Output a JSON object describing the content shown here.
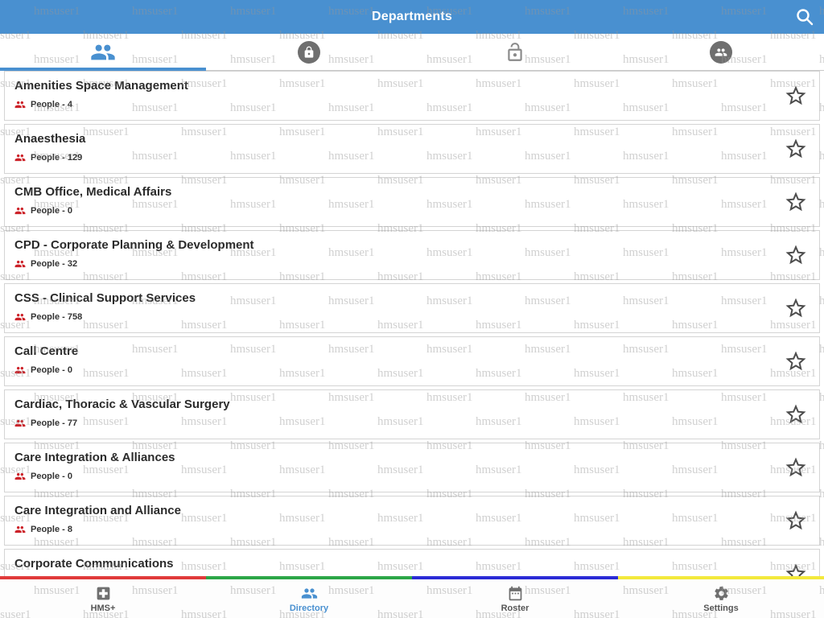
{
  "header": {
    "title": "Departments"
  },
  "watermark": {
    "text": "hmsuser1"
  },
  "top_tabs": [
    {
      "icon": "people-icon",
      "active": true
    },
    {
      "icon": "lock-closed-icon",
      "active": false
    },
    {
      "icon": "lock-open-icon",
      "active": false
    },
    {
      "icon": "people-circle-icon",
      "active": false
    }
  ],
  "departments": [
    {
      "name": "Amenities Space Management",
      "people": "People - 4"
    },
    {
      "name": "Anaesthesia",
      "people": "People - 129"
    },
    {
      "name": "CMB Office, Medical Affairs",
      "people": "People - 0"
    },
    {
      "name": "CPD - Corporate Planning & Development",
      "people": "People - 32"
    },
    {
      "name": "CSS - Clinical Support Services",
      "people": "People - 758"
    },
    {
      "name": "Call Centre",
      "people": "People - 0"
    },
    {
      "name": "Cardiac, Thoracic & Vascular Surgery",
      "people": "People - 77"
    },
    {
      "name": "Care Integration & Alliances",
      "people": "People - 0"
    },
    {
      "name": "Care Integration and Alliance",
      "people": "People - 8"
    },
    {
      "name": "Corporate Communications"
    }
  ],
  "bottom_nav": [
    {
      "label": "HMS+",
      "active": false
    },
    {
      "label": "Directory",
      "active": true
    },
    {
      "label": "Roster",
      "active": false
    },
    {
      "label": "Settings",
      "active": false
    }
  ],
  "colors": {
    "accent": "#4990d0",
    "people_icon": "#cc2229",
    "stripe": [
      "#e03a3a",
      "#2ca647",
      "#2b2bd6",
      "#f3e93c"
    ]
  }
}
